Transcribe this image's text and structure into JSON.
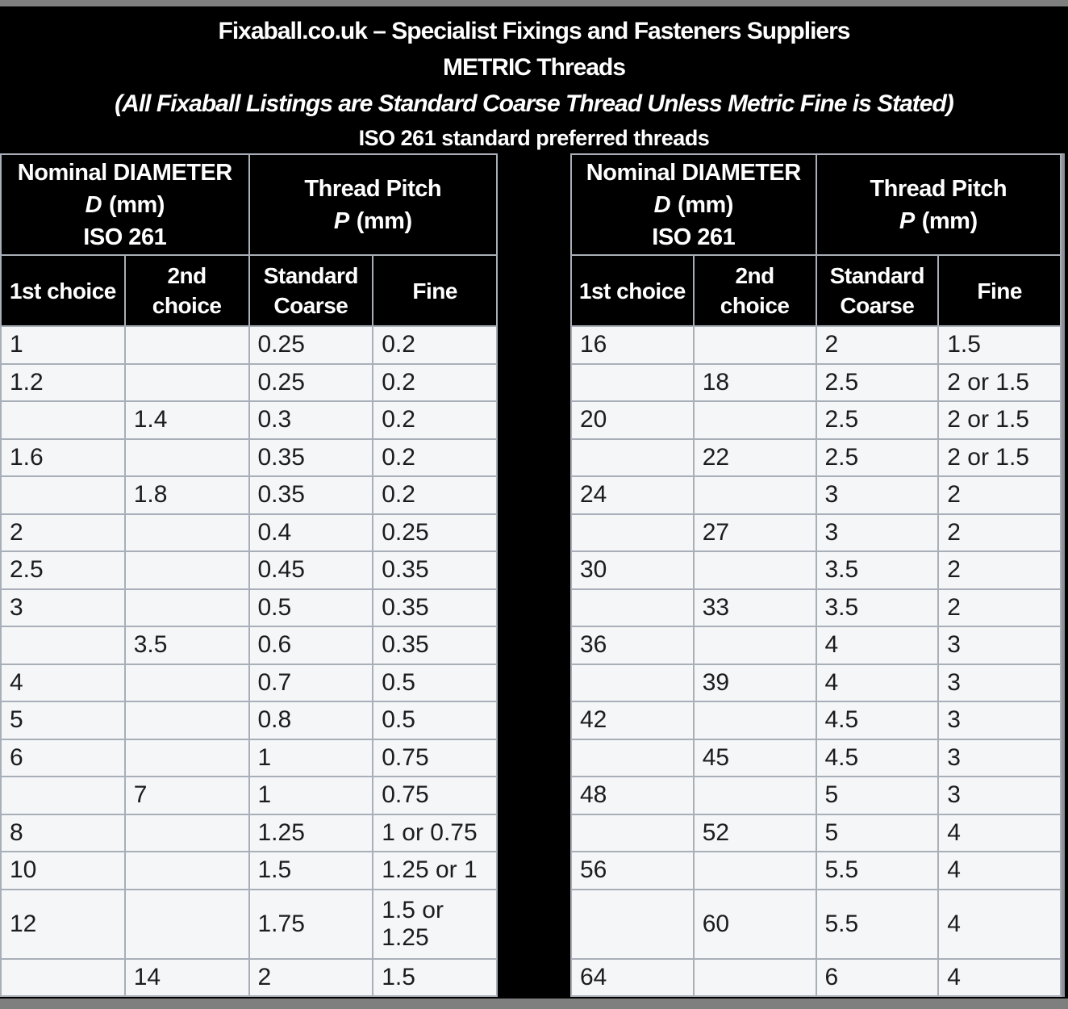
{
  "header": {
    "line1": "Fixaball.co.uk – Specialist Fixings and Fasteners Suppliers",
    "line2": "METRIC Threads",
    "line3": "(All Fixaball Listings are Standard Coarse Thread Unless Metric Fine is Stated)",
    "line4": "ISO 261 standard preferred threads"
  },
  "column_headers": {
    "diameter_title": "Nominal DIAMETER",
    "diameter_var": "D",
    "unit": "(mm)",
    "diameter_iso": "ISO 261",
    "pitch_title": "Thread Pitch",
    "pitch_var": "P",
    "first_choice": "1st choice",
    "second_choice": "2nd choice",
    "standard_coarse": "Standard Coarse",
    "fine": "Fine"
  },
  "left_table": {
    "rows": [
      {
        "first": "1",
        "second": "",
        "coarse": "0.25",
        "fine": "0.2"
      },
      {
        "first": "1.2",
        "second": "",
        "coarse": "0.25",
        "fine": "0.2"
      },
      {
        "first": "",
        "second": "1.4",
        "coarse": "0.3",
        "fine": "0.2"
      },
      {
        "first": "1.6",
        "second": "",
        "coarse": "0.35",
        "fine": "0.2"
      },
      {
        "first": "",
        "second": "1.8",
        "coarse": "0.35",
        "fine": "0.2"
      },
      {
        "first": "2",
        "second": "",
        "coarse": "0.4",
        "fine": "0.25"
      },
      {
        "first": "2.5",
        "second": "",
        "coarse": "0.45",
        "fine": "0.35"
      },
      {
        "first": "3",
        "second": "",
        "coarse": "0.5",
        "fine": "0.35"
      },
      {
        "first": "",
        "second": "3.5",
        "coarse": "0.6",
        "fine": "0.35"
      },
      {
        "first": "4",
        "second": "",
        "coarse": "0.7",
        "fine": "0.5"
      },
      {
        "first": "5",
        "second": "",
        "coarse": "0.8",
        "fine": "0.5"
      },
      {
        "first": "6",
        "second": "",
        "coarse": "1",
        "fine": "0.75"
      },
      {
        "first": "",
        "second": "7",
        "coarse": "1",
        "fine": "0.75"
      },
      {
        "first": "8",
        "second": "",
        "coarse": "1.25",
        "fine": "1 or 0.75"
      },
      {
        "first": "10",
        "second": "",
        "coarse": "1.5",
        "fine": "1.25 or 1"
      },
      {
        "first": "12",
        "second": "",
        "coarse": "1.75",
        "fine": "1.5 or 1.25",
        "tall": true
      },
      {
        "first": "",
        "second": "14",
        "coarse": "2",
        "fine": "1.5"
      }
    ]
  },
  "right_table": {
    "rows": [
      {
        "first": "16",
        "second": "",
        "coarse": "2",
        "fine": "1.5"
      },
      {
        "first": "",
        "second": "18",
        "coarse": "2.5",
        "fine": "2 or 1.5"
      },
      {
        "first": "20",
        "second": "",
        "coarse": "2.5",
        "fine": "2 or 1.5"
      },
      {
        "first": "",
        "second": "22",
        "coarse": "2.5",
        "fine": "2 or 1.5"
      },
      {
        "first": "24",
        "second": "",
        "coarse": "3",
        "fine": "2"
      },
      {
        "first": "",
        "second": "27",
        "coarse": "3",
        "fine": "2"
      },
      {
        "first": "30",
        "second": "",
        "coarse": "3.5",
        "fine": "2"
      },
      {
        "first": "",
        "second": "33",
        "coarse": "3.5",
        "fine": "2"
      },
      {
        "first": "36",
        "second": "",
        "coarse": "4",
        "fine": "3"
      },
      {
        "first": "",
        "second": "39",
        "coarse": "4",
        "fine": "3"
      },
      {
        "first": "42",
        "second": "",
        "coarse": "4.5",
        "fine": "3"
      },
      {
        "first": "",
        "second": "45",
        "coarse": "4.5",
        "fine": "3"
      },
      {
        "first": "48",
        "second": "",
        "coarse": "5",
        "fine": "3"
      },
      {
        "first": "",
        "second": "52",
        "coarse": "5",
        "fine": "4"
      },
      {
        "first": "56",
        "second": "",
        "coarse": "5.5",
        "fine": "4"
      },
      {
        "first": "",
        "second": "60",
        "coarse": "5.5",
        "fine": "4",
        "tall": true
      },
      {
        "first": "64",
        "second": "",
        "coarse": "6",
        "fine": "4"
      }
    ]
  },
  "colors": {
    "frame_gray": "#7f7f7f",
    "header_bg": "#000000",
    "cell_bg": "#f4f6f8",
    "grid_line": "#a9afb8",
    "text_dark": "#1c1c1c",
    "text_light": "#ffffff"
  }
}
